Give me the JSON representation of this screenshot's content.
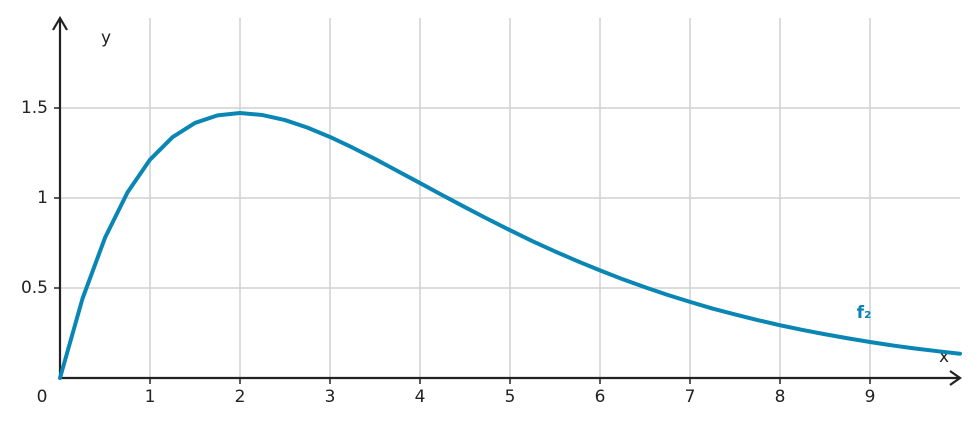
{
  "chart_data": {
    "type": "line",
    "x_label": "x",
    "y_label": "y",
    "x": [
      0,
      0.25,
      0.5,
      0.75,
      1,
      1.25,
      1.5,
      1.75,
      2,
      2.25,
      2.5,
      2.75,
      3,
      3.25,
      3.5,
      3.75,
      4,
      4.25,
      4.5,
      4.75,
      5,
      5.25,
      5.5,
      5.75,
      6,
      6.25,
      6.5,
      6.75,
      7,
      7.25,
      7.5,
      7.75,
      8,
      8.25,
      8.5,
      8.75,
      9,
      9.25,
      9.5,
      9.75,
      10
    ],
    "series": [
      {
        "name": "f₂",
        "color": "#0a86b4",
        "values": [
          0,
          0.441,
          0.779,
          1.031,
          1.213,
          1.338,
          1.417,
          1.459,
          1.472,
          1.461,
          1.433,
          1.391,
          1.339,
          1.28,
          1.217,
          1.15,
          1.083,
          1.015,
          0.949,
          0.884,
          0.821,
          0.76,
          0.703,
          0.649,
          0.598,
          0.549,
          0.504,
          0.462,
          0.423,
          0.386,
          0.353,
          0.322,
          0.293,
          0.267,
          0.243,
          0.221,
          0.2,
          0.181,
          0.164,
          0.149,
          0.135
        ]
      }
    ],
    "xlim": [
      0,
      10
    ],
    "ylim": [
      0,
      2
    ],
    "xticks": [
      0,
      1,
      2,
      3,
      4,
      5,
      6,
      7,
      8,
      9
    ],
    "yticks": [
      0.5,
      1,
      1.5
    ],
    "grid": true
  }
}
